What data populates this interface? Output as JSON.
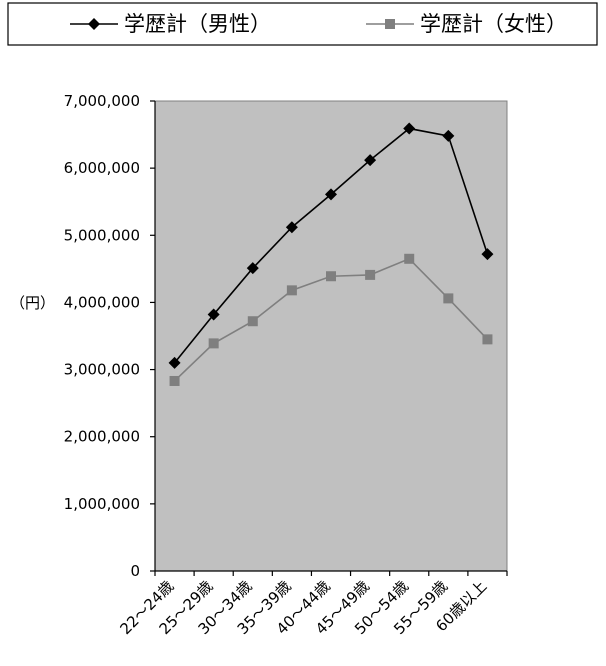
{
  "chart_data": {
    "type": "line",
    "categories": [
      "22～24歳",
      "25～29歳",
      "30～34歳",
      "35～39歳",
      "40～44歳",
      "45～49歳",
      "50～54歳",
      "55～59歳",
      "60歳以上"
    ],
    "series": [
      {
        "name": "学歴計（男性）",
        "values": [
          3100000,
          3820000,
          4510000,
          5120000,
          5610000,
          6120000,
          6590000,
          6480000,
          4720000
        ],
        "color": "#000000",
        "marker": "diamond"
      },
      {
        "name": "学歴計（女性）",
        "values": [
          2830000,
          3390000,
          3720000,
          4180000,
          4390000,
          4410000,
          4650000,
          4060000,
          3450000
        ],
        "color": "#7f7f7f",
        "marker": "square"
      }
    ],
    "ylim": [
      0,
      7000000
    ],
    "yticks": [
      "0",
      "1,000,000",
      "2,000,000",
      "3,000,000",
      "4,000,000",
      "5,000,000",
      "6,000,000",
      "7,000,000"
    ],
    "ylabel": "（円）",
    "plot_background": "#c0c0c0",
    "legend_position": "top",
    "grid": false
  }
}
